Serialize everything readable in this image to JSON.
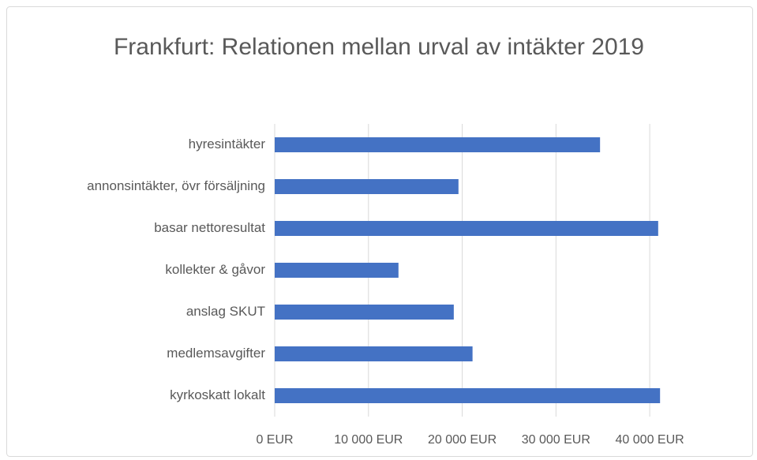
{
  "chart_data": {
    "type": "bar",
    "orientation": "horizontal",
    "title": "Frankfurt: Relationen mellan urval av intäkter 2019",
    "categories": [
      "hyresintäkter",
      "annonsintäkter, övr försäljning",
      "basar nettoresultat",
      "kollekter & gåvor",
      "anslag SKUT",
      "medlemsavgifter",
      "kyrkoskatt lokalt"
    ],
    "values": [
      34700,
      19600,
      40900,
      13200,
      19100,
      21100,
      41100
    ],
    "color": "#4472c4",
    "xlim": [
      0,
      41000
    ],
    "xticks": [
      {
        "value": 0,
        "label": "0 EUR"
      },
      {
        "value": 10000,
        "label": "10 000 EUR"
      },
      {
        "value": 20000,
        "label": "20 000 EUR"
      },
      {
        "value": 30000,
        "label": "30 000 EUR"
      },
      {
        "value": 40000,
        "label": "40 000 EUR"
      }
    ],
    "grid": true
  }
}
